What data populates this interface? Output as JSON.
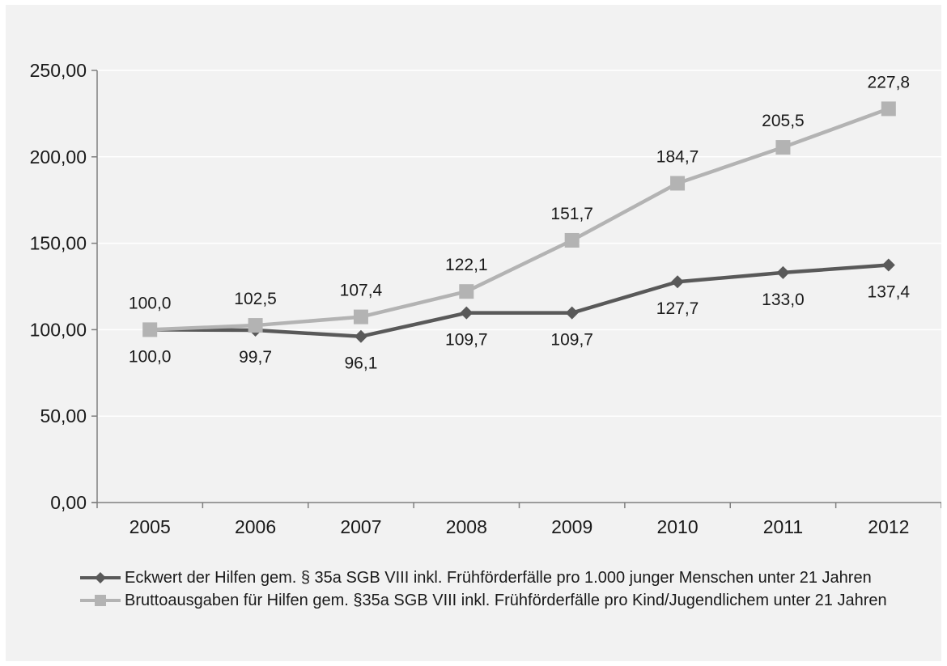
{
  "chart_data": {
    "type": "line",
    "title": "",
    "xlabel": "",
    "ylabel": "",
    "categories": [
      "2005",
      "2006",
      "2007",
      "2008",
      "2009",
      "2010",
      "2011",
      "2012"
    ],
    "ylim": [
      0,
      250
    ],
    "yticks": [
      0,
      50,
      100,
      150,
      200,
      250
    ],
    "ytick_labels": [
      "0,00",
      "50,00",
      "100,00",
      "150,00",
      "200,00",
      "250,00"
    ],
    "grid": true,
    "legend_position": "bottom",
    "series": [
      {
        "name": "Eckwert der Hilfen gem. § 35a SGB VIII inkl. Frühförderfälle pro 1.000 junger Menschen unter 21 Jahren",
        "values": [
          100.0,
          99.7,
          96.1,
          109.7,
          109.7,
          127.7,
          133.0,
          137.4
        ],
        "labels": [
          "100,0",
          "99,7",
          "96,1",
          "109,7",
          "109,7",
          "127,7",
          "133,0",
          "137,4"
        ],
        "color": "#595959",
        "marker": "diamond",
        "label_position": "below"
      },
      {
        "name": "Bruttoausgaben für Hilfen gem. §35a SGB VIII inkl. Frühförderfälle pro Kind/Jugendlichem unter 21 Jahren",
        "values": [
          100.0,
          102.5,
          107.4,
          122.1,
          151.7,
          184.7,
          205.5,
          227.8
        ],
        "labels": [
          "100,0",
          "102,5",
          "107,4",
          "122,1",
          "151,7",
          "184,7",
          "205,5",
          "227,8"
        ],
        "color": "#b3b3b3",
        "marker": "square",
        "label_position": "above"
      }
    ]
  }
}
